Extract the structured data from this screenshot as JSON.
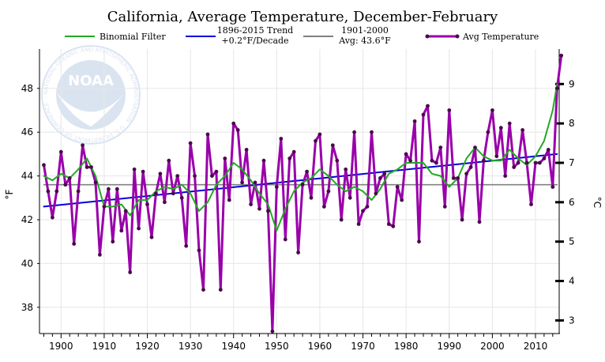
{
  "chart_data": {
    "type": "line",
    "title": "California, Average Temperature, December-February",
    "ylabel": "°F",
    "y2label": "°C",
    "xlim": [
      1895,
      2015.5
    ],
    "ylim": [
      36.8,
      49.8
    ],
    "x_ticks": [
      1900,
      1910,
      1920,
      1930,
      1940,
      1950,
      1960,
      1970,
      1980,
      1990,
      2000,
      2010
    ],
    "y_ticks": [
      38,
      40,
      42,
      44,
      46,
      48
    ],
    "y2_ticks": [
      3,
      4,
      5,
      6,
      7,
      8,
      9
    ],
    "grid": true,
    "legend_position": "top",
    "legend": [
      {
        "label": "Binomial Filter",
        "color": "#22aa22"
      },
      {
        "label": "1896-2015 Trend",
        "label2": "+0.2°F/Decade",
        "color": "#0000dd"
      },
      {
        "label": "1901-2000",
        "label2": "Avg: 43.6°F",
        "color": "#808080"
      },
      {
        "label": "Avg Temperature",
        "color": "#9900aa"
      }
    ],
    "series": [
      {
        "name": "Avg Temperature",
        "color": "#9900aa",
        "x_start": 1896,
        "values": [
          44.5,
          43.3,
          42.1,
          43.3,
          45.1,
          43.6,
          43.9,
          40.9,
          43.3,
          45.4,
          44.4,
          44.4,
          43.7,
          40.4,
          42.6,
          43.4,
          41.0,
          43.4,
          41.5,
          42.4,
          39.6,
          44.3,
          41.6,
          44.2,
          42.7,
          41.2,
          43.2,
          44.1,
          42.8,
          44.7,
          43.2,
          44.0,
          43.0,
          40.8,
          45.5,
          44.0,
          40.6,
          38.8,
          45.9,
          44.0,
          44.2,
          38.8,
          44.8,
          42.9,
          46.4,
          46.1,
          43.7,
          45.2,
          42.7,
          43.7,
          42.5,
          44.7,
          42.4,
          36.9,
          43.5,
          45.7,
          41.1,
          44.8,
          45.1,
          40.5,
          43.6,
          44.2,
          43.0,
          45.6,
          45.9,
          42.6,
          43.3,
          45.4,
          44.7,
          42.0,
          44.3,
          43.0,
          46.0,
          41.8,
          42.4,
          42.6,
          46.0,
          43.2,
          43.9,
          44.1,
          41.8,
          41.7,
          43.5,
          42.9,
          45.0,
          44.7,
          46.5,
          41.0,
          46.8,
          47.2,
          44.7,
          44.6,
          45.3,
          42.6,
          47.0,
          43.9,
          43.9,
          42.0,
          44.1,
          44.4,
          45.3,
          41.9,
          44.7,
          46.0,
          47.0,
          44.9,
          46.2,
          44.0,
          46.4,
          44.4,
          44.6,
          46.1,
          44.6,
          42.7,
          44.6,
          44.6,
          44.8,
          45.2,
          43.5,
          48.0,
          49.5
        ]
      },
      {
        "name": "Binomial Filter",
        "color": "#22aa22",
        "x": [
          1896,
          1898,
          1900,
          1902,
          1904,
          1906,
          1908,
          1910,
          1912,
          1914,
          1916,
          1918,
          1920,
          1922,
          1924,
          1926,
          1928,
          1930,
          1932,
          1934,
          1936,
          1938,
          1940,
          1942,
          1944,
          1946,
          1948,
          1950,
          1952,
          1954,
          1956,
          1958,
          1960,
          1962,
          1964,
          1966,
          1968,
          1970,
          1972,
          1974,
          1976,
          1978,
          1980,
          1982,
          1984,
          1986,
          1988,
          1990,
          1992,
          1994,
          1996,
          1998,
          2000,
          2002,
          2004,
          2006,
          2008,
          2010,
          2012,
          2014,
          2015
        ],
        "values": [
          44.0,
          43.8,
          44.1,
          43.9,
          44.3,
          44.8,
          44.0,
          42.6,
          42.6,
          42.7,
          42.2,
          42.9,
          42.9,
          43.3,
          43.5,
          43.4,
          43.6,
          43.2,
          42.4,
          42.8,
          43.6,
          44.0,
          44.6,
          44.3,
          43.8,
          43.2,
          42.7,
          41.5,
          42.5,
          43.3,
          43.7,
          43.9,
          44.3,
          44.0,
          43.6,
          43.3,
          43.5,
          43.3,
          42.9,
          43.4,
          44.1,
          44.3,
          44.6,
          44.6,
          44.6,
          44.1,
          44.0,
          43.5,
          43.9,
          44.8,
          45.3,
          44.9,
          44.7,
          44.7,
          45.2,
          44.8,
          44.5,
          44.9,
          45.6,
          47.0,
          48.2
        ]
      },
      {
        "name": "1896-2015 Trend",
        "color": "#0000dd",
        "x": [
          1896,
          2015
        ],
        "values": [
          42.6,
          45.0
        ]
      },
      {
        "name": "1901-2000 Avg",
        "color": "#808080",
        "x": [
          1896,
          2015
        ],
        "values": [
          43.6,
          43.6
        ]
      }
    ]
  },
  "watermark": {
    "logo_text": "NOAA",
    "ring_text": "NATIONAL OCEANIC AND ATMOSPHERIC ADMINISTRATION · U.S. DEPARTMENT OF COMMERCE"
  }
}
